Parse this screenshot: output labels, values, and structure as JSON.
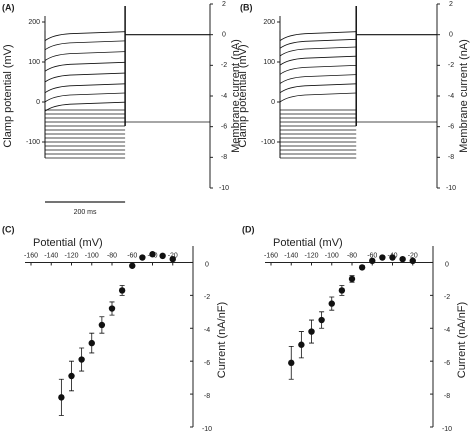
{
  "chart_data": [
    {
      "type": "trace",
      "label": "(A)",
      "ylabel": "Clamp potential (mV)",
      "y2label": "Membrane current (nA)",
      "xlim": [
        0,
        412
      ],
      "ylim": [
        -215,
        245
      ],
      "yticks": [
        -100,
        0,
        100,
        200
      ],
      "y2lim": [
        -10,
        2
      ],
      "y2ticks": [
        2,
        0,
        -2,
        -4,
        -6,
        -8,
        -10
      ],
      "step_start": 0,
      "step_end": 200,
      "holding_potential": -50,
      "holding_current": 0,
      "voltage_steps": [
        -20,
        -30,
        -40,
        -50,
        -60,
        -70,
        -80,
        -90,
        -100,
        -110,
        -120,
        -130,
        -140
      ],
      "current_steps": [
        0,
        -0.6,
        -1.3,
        -2.0,
        -2.7,
        -3.4,
        -4.0,
        -4.6
      ],
      "scalebar": {
        "value": 200,
        "label": "200 ms"
      },
      "color": "#111"
    },
    {
      "type": "trace",
      "label": "(B)",
      "ylabel": "Clamp potential (mV)",
      "y2label": "Membrane current (nA)",
      "xlim": [
        0,
        412
      ],
      "ylim": [
        -215,
        245
      ],
      "yticks": [
        -100,
        0,
        100,
        200
      ],
      "y2lim": [
        -10,
        2
      ],
      "y2ticks": [
        2,
        0,
        -2,
        -4,
        -6,
        -8,
        -10
      ],
      "step_start": 0,
      "step_end": 200,
      "holding_potential": -50,
      "holding_current": 0,
      "voltage_steps": [
        -20,
        -30,
        -40,
        -50,
        -60,
        -70,
        -80,
        -90,
        -100,
        -110,
        -120,
        -130,
        -140
      ],
      "current_steps": [
        0,
        -0.5,
        -1.0,
        -1.6,
        -2.2,
        -2.8,
        -3.4,
        -4.0
      ],
      "color": "#111"
    },
    {
      "type": "scatter",
      "label": "(C)",
      "xlabel": "Potential (mV)",
      "ylabel": "Current (nA/nF)",
      "xlim": [
        -160,
        0
      ],
      "xticks": [
        -160,
        -140,
        -120,
        -100,
        -80,
        -60,
        -40,
        -20
      ],
      "ylim": [
        -10,
        1
      ],
      "yticks": [
        0,
        -2,
        -4,
        -6,
        -8,
        -10
      ],
      "x": [
        -130,
        -120,
        -110,
        -100,
        -90,
        -80,
        -70,
        -60,
        -50,
        -40,
        -30,
        -20
      ],
      "values": [
        -8.2,
        -6.9,
        -5.9,
        -4.9,
        -3.8,
        -2.8,
        -1.7,
        -0.2,
        0.3,
        0.5,
        0.4,
        0.2
      ],
      "errors": [
        1.1,
        0.9,
        0.7,
        0.6,
        0.5,
        0.4,
        0.3,
        0.1,
        0.1,
        0.1,
        0.1,
        0.1
      ],
      "color": "#111"
    },
    {
      "type": "scatter",
      "label": "(D)",
      "xlabel": "Potential (mV)",
      "ylabel": "Current (nA/nF)",
      "xlim": [
        -160,
        0
      ],
      "xticks": [
        -160,
        -140,
        -120,
        -100,
        -80,
        -60,
        -40,
        -20
      ],
      "ylim": [
        -10,
        1
      ],
      "yticks": [
        0,
        -2,
        -4,
        -6,
        -8,
        -10
      ],
      "x": [
        -140,
        -130,
        -120,
        -110,
        -100,
        -90,
        -80,
        -70,
        -60,
        -50,
        -40,
        -30,
        -20
      ],
      "values": [
        -6.1,
        -5.0,
        -4.2,
        -3.5,
        -2.5,
        -1.7,
        -1.0,
        -0.3,
        0.1,
        0.3,
        0.3,
        0.2,
        0.1
      ],
      "errors": [
        1.0,
        0.8,
        0.7,
        0.5,
        0.4,
        0.3,
        0.2,
        0.1,
        0.1,
        0.1,
        0.1,
        0.1,
        0.1
      ],
      "color": "#111"
    }
  ]
}
